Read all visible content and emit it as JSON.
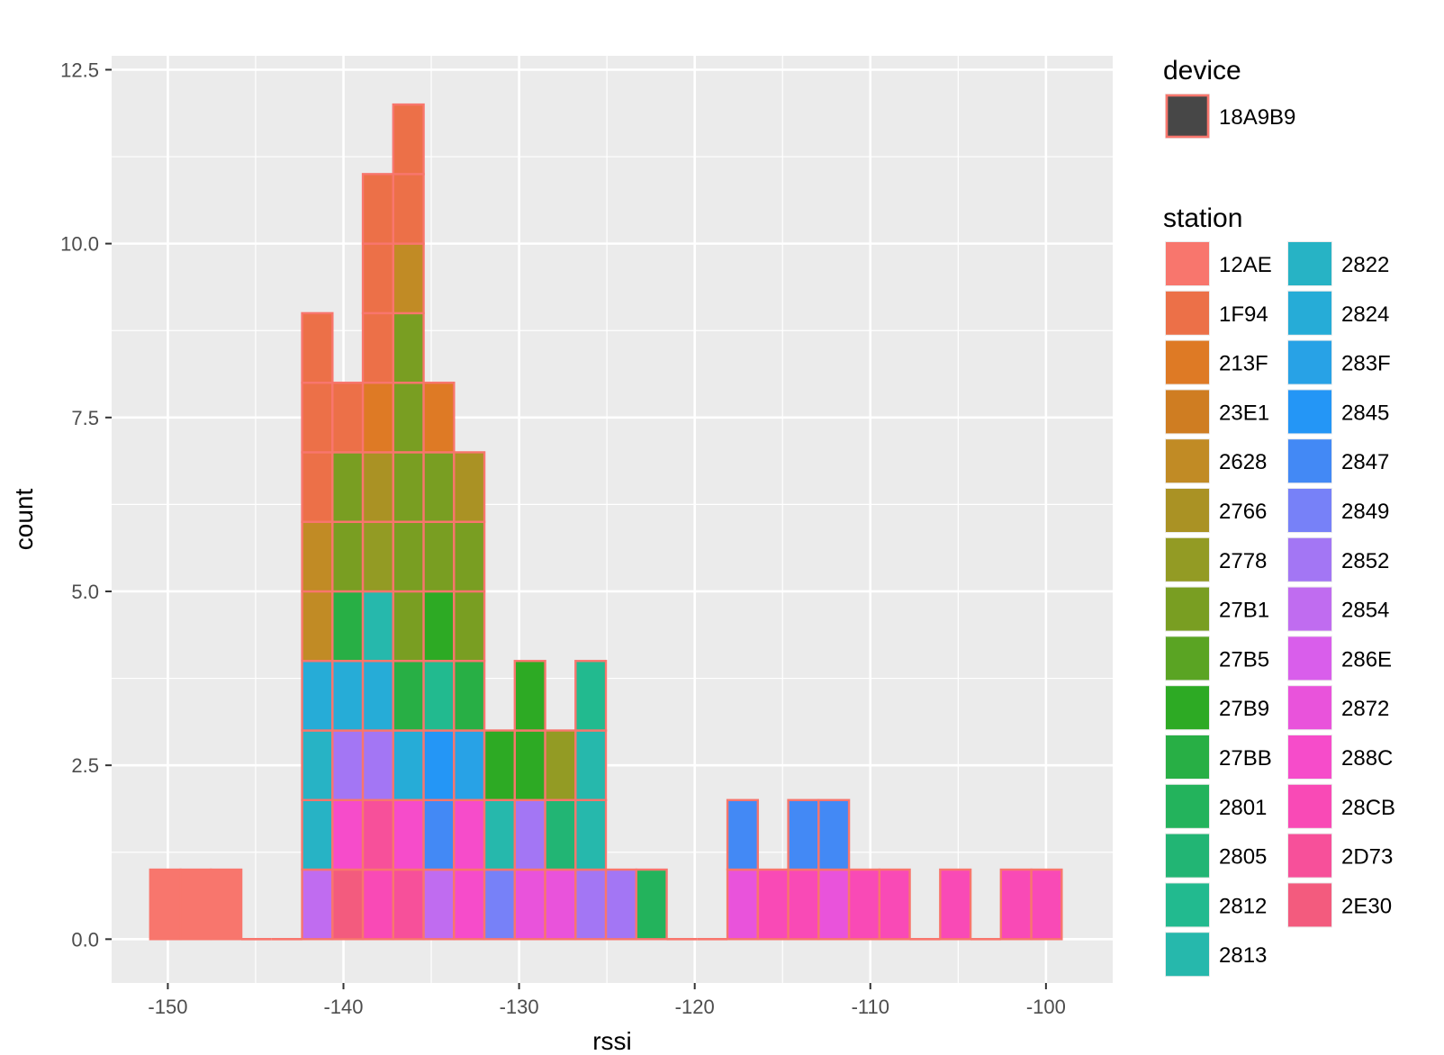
{
  "chart_data": {
    "type": "bar",
    "variant": "stacked-histogram",
    "xlabel": "rssi",
    "ylabel": "count",
    "x_ticks": [
      -150,
      -140,
      -130,
      -120,
      -110,
      -100
    ],
    "y_ticks": [
      "0.0",
      "2.5",
      "5.0",
      "7.5",
      "10.0",
      "12.5"
    ],
    "xlim": [
      -153.2,
      -96.2
    ],
    "ylim": [
      -0.63,
      12.7
    ],
    "bin_width": 1.73,
    "bar_outline_color": "#F8766D",
    "grid": true,
    "legend_position": "right",
    "device_legend": {
      "title": "device",
      "entries": [
        {
          "label": "18A9B9",
          "color": "#474747"
        }
      ]
    },
    "station_legend": {
      "title": "station",
      "entries": [
        {
          "label": "12AE",
          "color": "#F8766D"
        },
        {
          "label": "1F94",
          "color": "#EC7048"
        },
        {
          "label": "213F",
          "color": "#DE7A25"
        },
        {
          "label": "23E1",
          "color": "#CF7D22"
        },
        {
          "label": "2628",
          "color": "#C18B25"
        },
        {
          "label": "2766",
          "color": "#AA9224"
        },
        {
          "label": "2778",
          "color": "#939B24"
        },
        {
          "label": "27B1",
          "color": "#799E22"
        },
        {
          "label": "27B5",
          "color": "#5AA423"
        },
        {
          "label": "27B9",
          "color": "#2DAA24"
        },
        {
          "label": "27BB",
          "color": "#28AF45"
        },
        {
          "label": "2801",
          "color": "#23B35C"
        },
        {
          "label": "2805",
          "color": "#22B574"
        },
        {
          "label": "2812",
          "color": "#22BA8F"
        },
        {
          "label": "2813",
          "color": "#26B8AC"
        },
        {
          "label": "2822",
          "color": "#27B3C5"
        },
        {
          "label": "2824",
          "color": "#26ACD7"
        },
        {
          "label": "283F",
          "color": "#28A2E6"
        },
        {
          "label": "2845",
          "color": "#2496F6"
        },
        {
          "label": "2847",
          "color": "#4389F5"
        },
        {
          "label": "2849",
          "color": "#7781F8"
        },
        {
          "label": "2852",
          "color": "#A376F4"
        },
        {
          "label": "2854",
          "color": "#C06CF0"
        },
        {
          "label": "286E",
          "color": "#D95EEB"
        },
        {
          "label": "2872",
          "color": "#E953DB"
        },
        {
          "label": "288C",
          "color": "#F64CCA"
        },
        {
          "label": "28CB",
          "color": "#F94AB6"
        },
        {
          "label": "2D73",
          "color": "#F7509A"
        },
        {
          "label": "2E30",
          "color": "#F35B7E"
        }
      ]
    },
    "bins": [
      {
        "x": -150.14,
        "stack": [
          "12AE"
        ]
      },
      {
        "x": -148.41,
        "stack": [
          "12AE"
        ]
      },
      {
        "x": -146.68,
        "stack": [
          "12AE"
        ]
      },
      {
        "x": -144.95,
        "stack": []
      },
      {
        "x": -143.22,
        "stack": []
      },
      {
        "x": -141.49,
        "stack": [
          "2854",
          "2822",
          "2822",
          "2824",
          "2628",
          "2628",
          "1F94",
          "1F94",
          "1F94"
        ]
      },
      {
        "x": -139.76,
        "stack": [
          "2E30",
          "288C",
          "2852",
          "2824",
          "27BB",
          "27B1",
          "27B1",
          "1F94"
        ]
      },
      {
        "x": -138.03,
        "stack": [
          "28CB",
          "2D73",
          "2852",
          "2824",
          "2813",
          "2778",
          "2766",
          "213F",
          "1F94",
          "1F94",
          "1F94"
        ]
      },
      {
        "x": -136.3,
        "stack": [
          "2D73",
          "288C",
          "2824",
          "27BB",
          "27B1",
          "27B1",
          "27B1",
          "27B1",
          "27B1",
          "2628",
          "1F94",
          "1F94"
        ]
      },
      {
        "x": -134.57,
        "stack": [
          "2854",
          "2847",
          "2845",
          "2812",
          "27B9",
          "27B1",
          "27B1",
          "213F"
        ]
      },
      {
        "x": -132.84,
        "stack": [
          "288C",
          "288C",
          "283F",
          "27BB",
          "27B1",
          "27B1",
          "2766"
        ]
      },
      {
        "x": -131.11,
        "stack": [
          "2849",
          "2813",
          "27B9"
        ]
      },
      {
        "x": -129.38,
        "stack": [
          "2872",
          "2852",
          "27B9",
          "27B9"
        ]
      },
      {
        "x": -127.65,
        "stack": [
          "2872",
          "2805",
          "2778"
        ]
      },
      {
        "x": -125.92,
        "stack": [
          "2852",
          "2813",
          "2813",
          "2812"
        ]
      },
      {
        "x": -124.19,
        "stack": [
          "2852"
        ]
      },
      {
        "x": -122.46,
        "stack": [
          "2801"
        ]
      },
      {
        "x": -120.73,
        "stack": []
      },
      {
        "x": -119.0,
        "stack": []
      },
      {
        "x": -117.27,
        "stack": [
          "2872",
          "2847"
        ]
      },
      {
        "x": -115.54,
        "stack": [
          "28CB"
        ]
      },
      {
        "x": -113.81,
        "stack": [
          "28CB",
          "2847"
        ]
      },
      {
        "x": -112.08,
        "stack": [
          "2872",
          "2847"
        ]
      },
      {
        "x": -110.35,
        "stack": [
          "28CB"
        ]
      },
      {
        "x": -108.62,
        "stack": [
          "28CB"
        ]
      },
      {
        "x": -106.89,
        "stack": []
      },
      {
        "x": -105.16,
        "stack": [
          "28CB"
        ]
      },
      {
        "x": -103.43,
        "stack": []
      },
      {
        "x": -101.7,
        "stack": [
          "28CB"
        ]
      },
      {
        "x": -99.97,
        "stack": [
          "28CB"
        ]
      }
    ]
  }
}
